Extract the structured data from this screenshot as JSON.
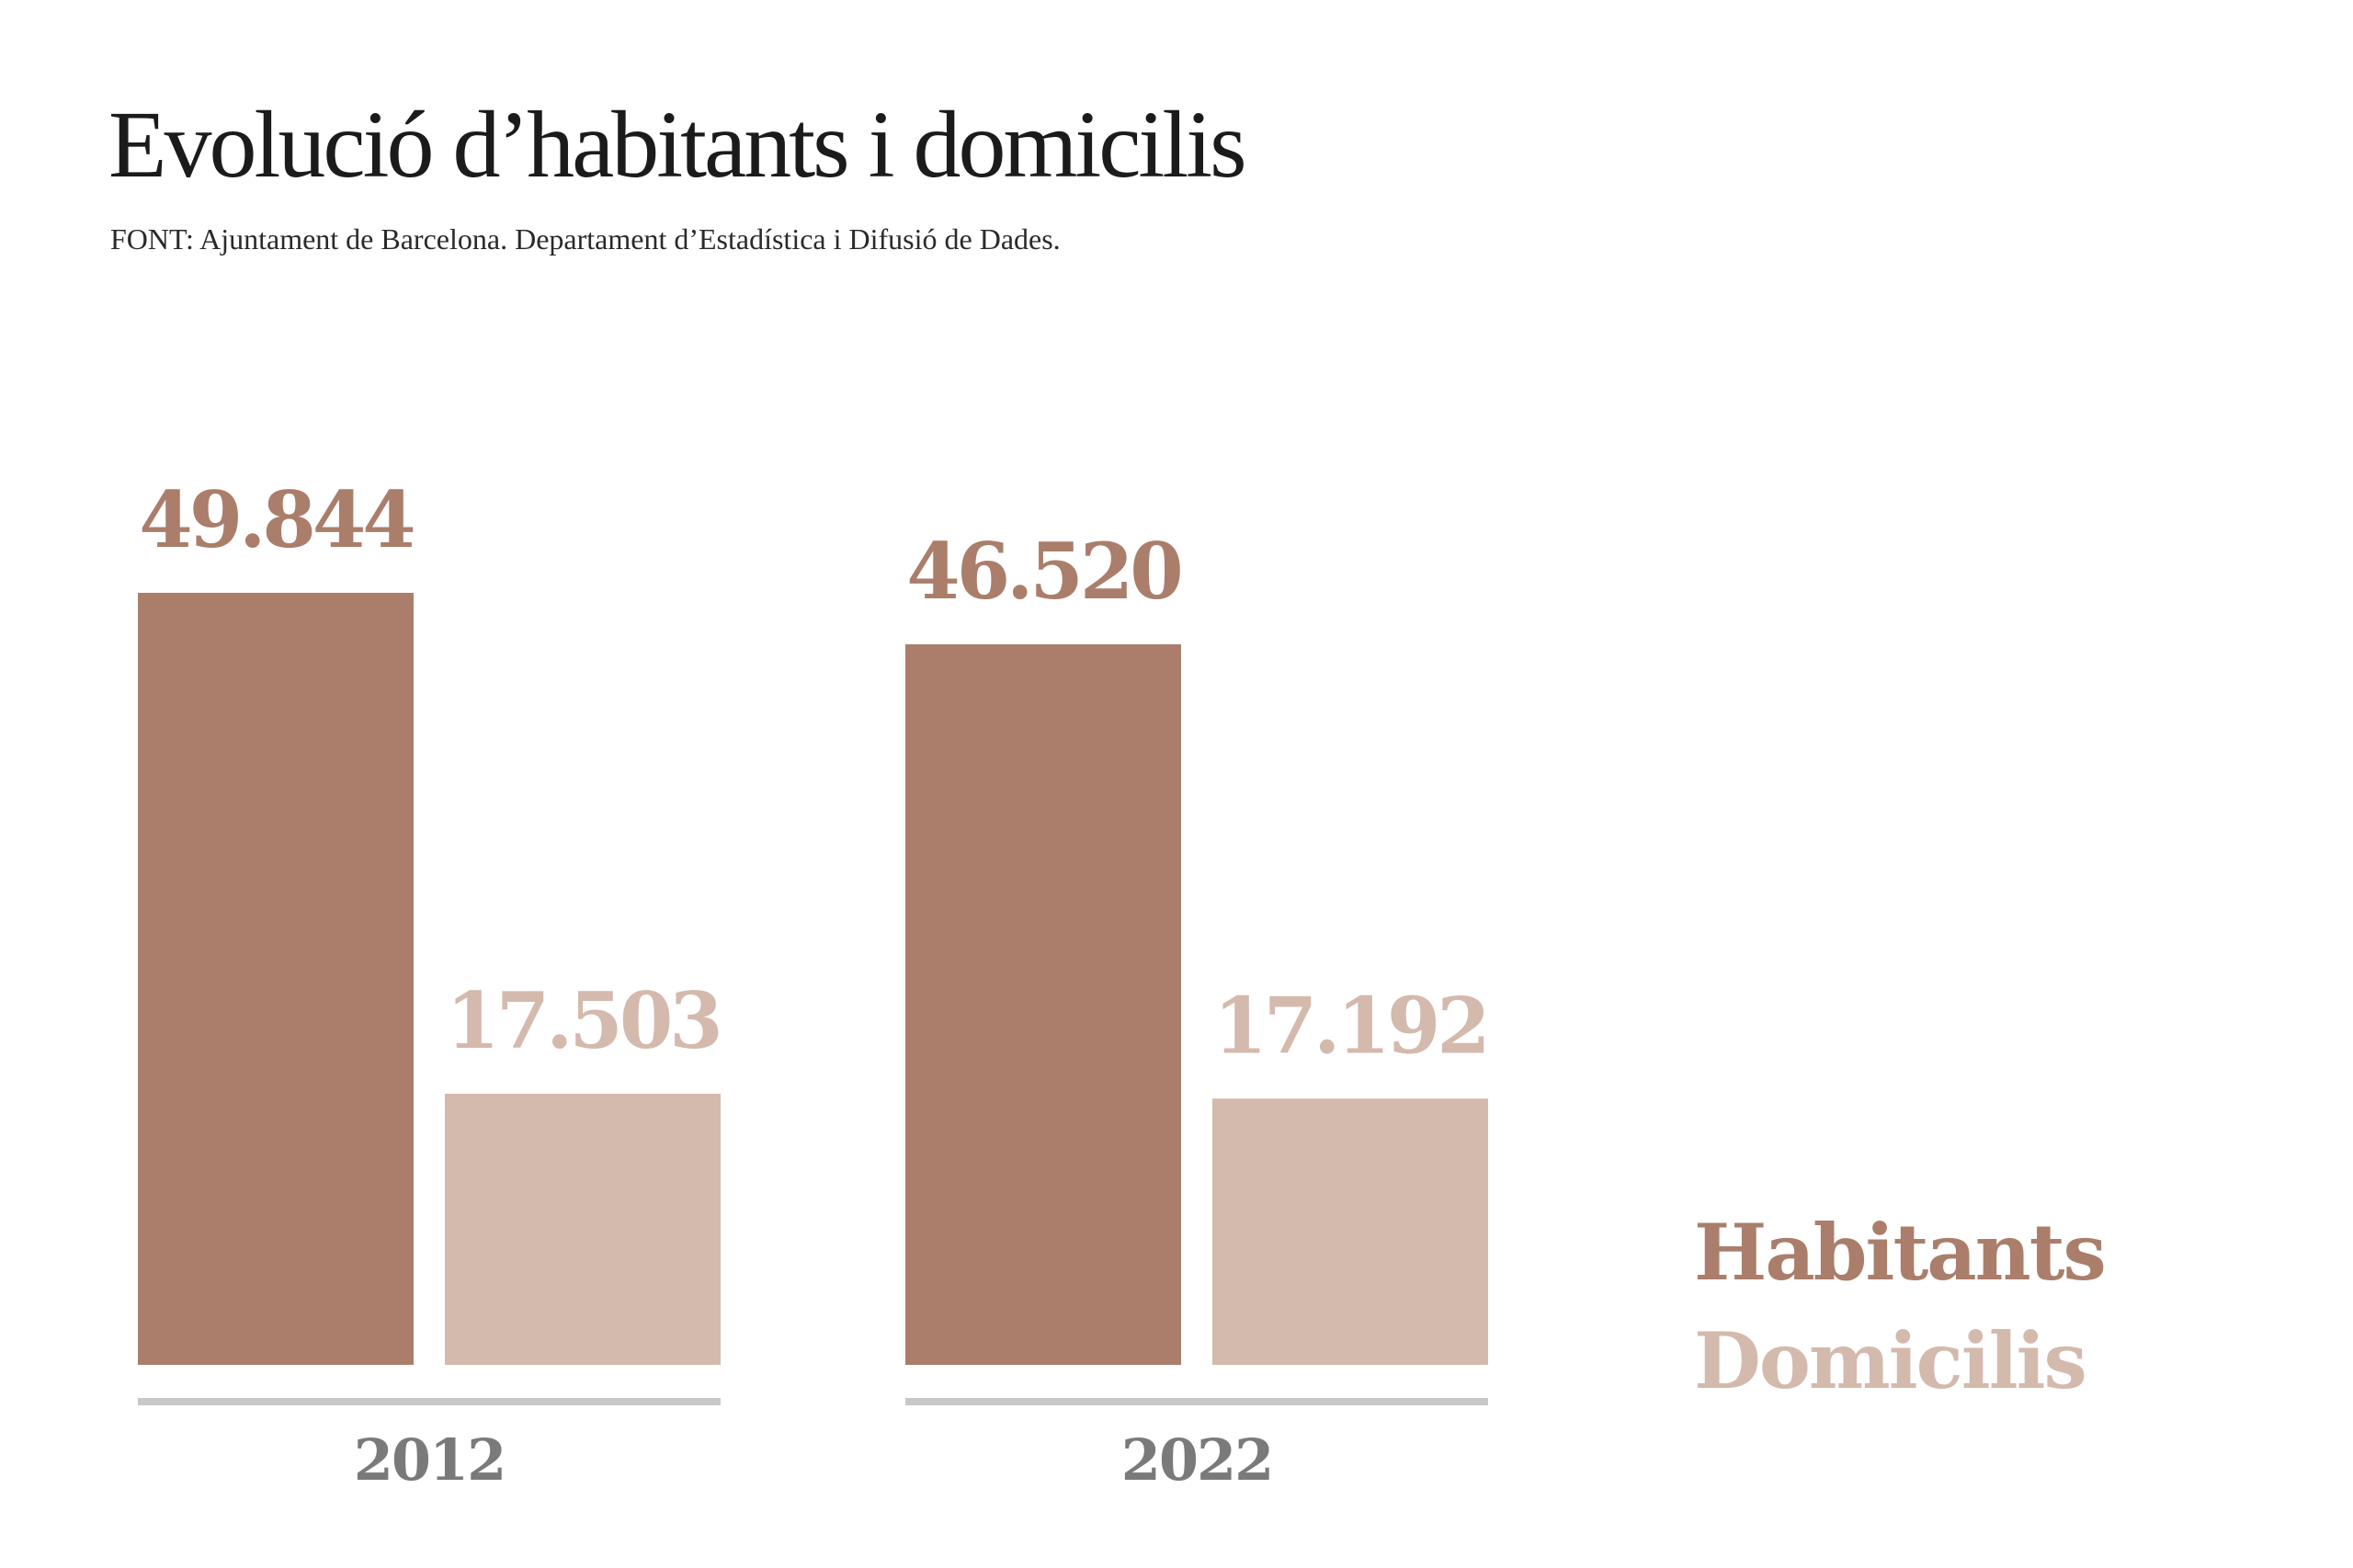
{
  "chart_data": {
    "type": "bar",
    "title": "Evolució d’habitants i domicilis",
    "subtitle": "FONT: Ajuntament de Barcelona. Departament d’Estadística i Difusió de Dades.",
    "categories": [
      "2012",
      "2022"
    ],
    "series": [
      {
        "name": "Habitants",
        "color": "#AA7E6B",
        "values": [
          49844,
          46520
        ],
        "labels": [
          "49.844",
          "46.520"
        ]
      },
      {
        "name": "Domicilis",
        "color": "#D4B9AD",
        "values": [
          17503,
          17192
        ],
        "labels": [
          "17.503",
          "17.192"
        ]
      }
    ],
    "ylim": [
      0,
      49844
    ],
    "grid": false,
    "legend_position": "bottom-right",
    "baseline_color": "#C8C8C8"
  }
}
